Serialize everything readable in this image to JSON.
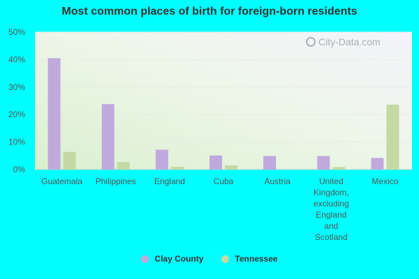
{
  "colors": {
    "page_bg": "#00ffff",
    "clay_county": "#c0a9dc",
    "tennessee": "#c4d9a4"
  },
  "watermark": "City-Data.com",
  "chart_data": {
    "type": "bar",
    "title": "Most common places of birth for foreign-born residents",
    "categories": [
      "Guatemala",
      "Philippines",
      "England",
      "Cuba",
      "Austria",
      "United Kingdom, excluding England and Scotland",
      "Mexico"
    ],
    "category_lines": [
      [
        "Guatemala"
      ],
      [
        "Philippines"
      ],
      [
        "England"
      ],
      [
        "Cuba"
      ],
      [
        "Austria"
      ],
      [
        "United",
        "Kingdom,",
        "excluding",
        "England",
        "and",
        "Scotland"
      ],
      [
        "Mexico"
      ]
    ],
    "series": [
      {
        "name": "Clay County",
        "color": "#c0a9dc",
        "values": [
          40.5,
          23.8,
          7.2,
          5.1,
          4.9,
          4.9,
          4.2
        ]
      },
      {
        "name": "Tennessee",
        "color": "#c4d9a4",
        "values": [
          6.4,
          2.7,
          1.0,
          1.5,
          0.0,
          0.9,
          23.6
        ]
      }
    ],
    "ylim": [
      0,
      50
    ],
    "yticks": [
      0,
      10,
      20,
      30,
      40,
      50
    ],
    "ytick_labels": [
      "0%",
      "10%",
      "20%",
      "30%",
      "40%",
      "50%"
    ],
    "xlabel": "",
    "ylabel": "",
    "grid": true,
    "legend_position": "bottom"
  }
}
